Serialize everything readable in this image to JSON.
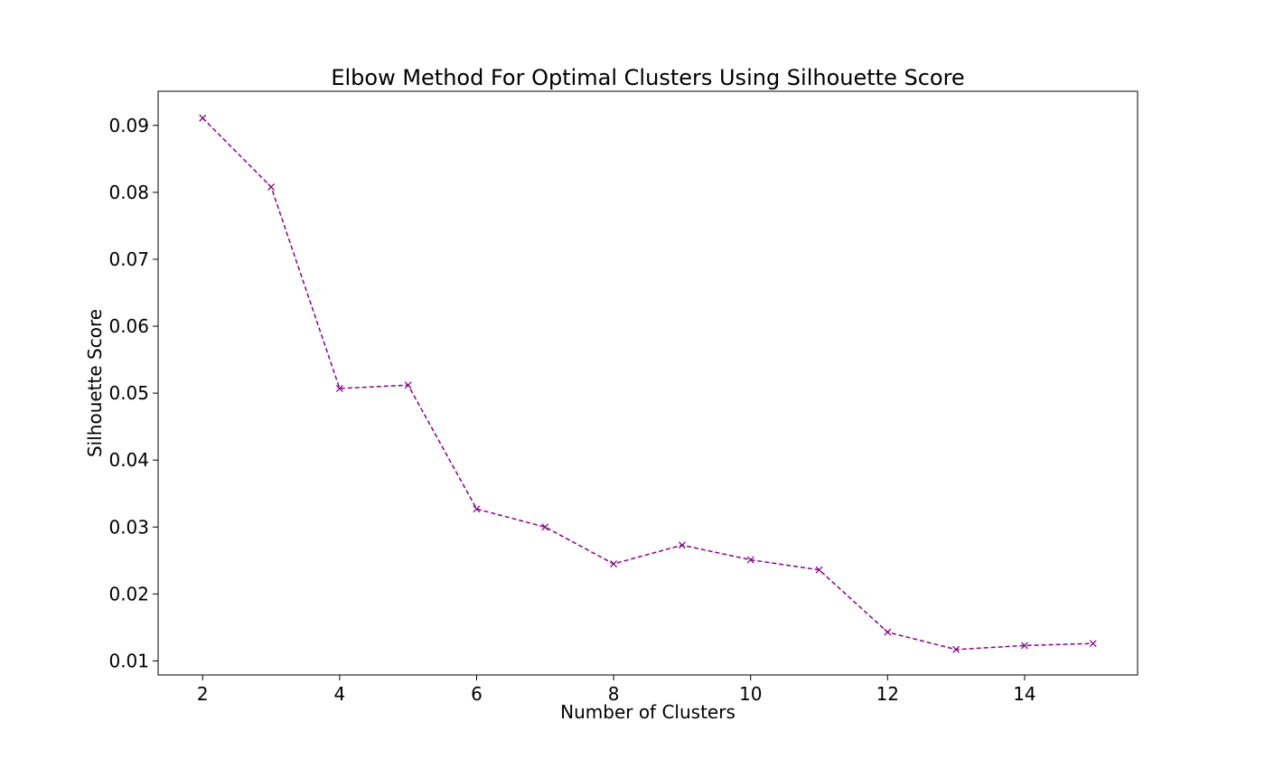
{
  "chart_data": {
    "type": "line",
    "title": "Elbow Method For Optimal Clusters Using Silhouette Score",
    "xlabel": "Number of Clusters",
    "ylabel": "Silhouette Score",
    "xlim": [
      1.35,
      15.65
    ],
    "ylim": [
      0.0079,
      0.0951
    ],
    "xticks": [
      2,
      4,
      6,
      8,
      10,
      12,
      14
    ],
    "xtick_labels": [
      "2",
      "4",
      "6",
      "8",
      "10",
      "12",
      "14"
    ],
    "yticks": [
      0.01,
      0.02,
      0.03,
      0.04,
      0.05,
      0.06,
      0.07,
      0.08,
      0.09
    ],
    "ytick_labels": [
      "0.01",
      "0.02",
      "0.03",
      "0.04",
      "0.05",
      "0.06",
      "0.07",
      "0.08",
      "0.09"
    ],
    "grid": false,
    "x": [
      2,
      3,
      4,
      5,
      6,
      7,
      8,
      9,
      10,
      11,
      12,
      13,
      14,
      15
    ],
    "series": [
      {
        "values": [
          0.0911,
          0.0808,
          0.0507,
          0.0512,
          0.0327,
          0.03,
          0.0245,
          0.0273,
          0.0251,
          0.0236,
          0.0143,
          0.0117,
          0.0123,
          0.0126
        ],
        "color": "#8b008b",
        "line_style": "dashed",
        "marker": "x"
      }
    ]
  }
}
